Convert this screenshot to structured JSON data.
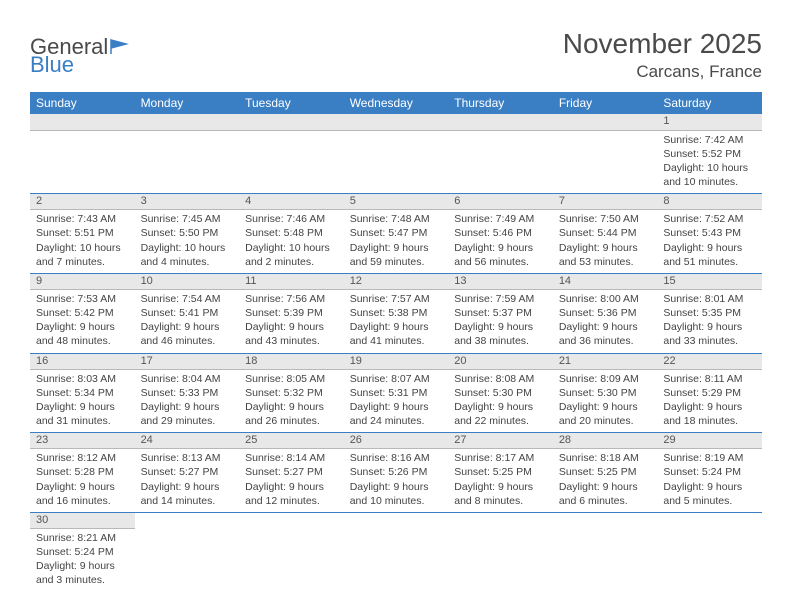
{
  "logo": {
    "text1": "General",
    "text2": "Blue"
  },
  "title": "November 2025",
  "location": "Carcans, France",
  "colors": {
    "header_bg": "#3a7fc4",
    "header_fg": "#ffffff",
    "daynum_bg": "#e8e8e8",
    "row_divider": "#3a7fc4",
    "text": "#444444"
  },
  "weekdays": [
    "Sunday",
    "Monday",
    "Tuesday",
    "Wednesday",
    "Thursday",
    "Friday",
    "Saturday"
  ],
  "weeks": [
    [
      null,
      null,
      null,
      null,
      null,
      null,
      {
        "n": "1",
        "sr": "Sunrise: 7:42 AM",
        "ss": "Sunset: 5:52 PM",
        "d1": "Daylight: 10 hours",
        "d2": "and 10 minutes."
      }
    ],
    [
      {
        "n": "2",
        "sr": "Sunrise: 7:43 AM",
        "ss": "Sunset: 5:51 PM",
        "d1": "Daylight: 10 hours",
        "d2": "and 7 minutes."
      },
      {
        "n": "3",
        "sr": "Sunrise: 7:45 AM",
        "ss": "Sunset: 5:50 PM",
        "d1": "Daylight: 10 hours",
        "d2": "and 4 minutes."
      },
      {
        "n": "4",
        "sr": "Sunrise: 7:46 AM",
        "ss": "Sunset: 5:48 PM",
        "d1": "Daylight: 10 hours",
        "d2": "and 2 minutes."
      },
      {
        "n": "5",
        "sr": "Sunrise: 7:48 AM",
        "ss": "Sunset: 5:47 PM",
        "d1": "Daylight: 9 hours",
        "d2": "and 59 minutes."
      },
      {
        "n": "6",
        "sr": "Sunrise: 7:49 AM",
        "ss": "Sunset: 5:46 PM",
        "d1": "Daylight: 9 hours",
        "d2": "and 56 minutes."
      },
      {
        "n": "7",
        "sr": "Sunrise: 7:50 AM",
        "ss": "Sunset: 5:44 PM",
        "d1": "Daylight: 9 hours",
        "d2": "and 53 minutes."
      },
      {
        "n": "8",
        "sr": "Sunrise: 7:52 AM",
        "ss": "Sunset: 5:43 PM",
        "d1": "Daylight: 9 hours",
        "d2": "and 51 minutes."
      }
    ],
    [
      {
        "n": "9",
        "sr": "Sunrise: 7:53 AM",
        "ss": "Sunset: 5:42 PM",
        "d1": "Daylight: 9 hours",
        "d2": "and 48 minutes."
      },
      {
        "n": "10",
        "sr": "Sunrise: 7:54 AM",
        "ss": "Sunset: 5:41 PM",
        "d1": "Daylight: 9 hours",
        "d2": "and 46 minutes."
      },
      {
        "n": "11",
        "sr": "Sunrise: 7:56 AM",
        "ss": "Sunset: 5:39 PM",
        "d1": "Daylight: 9 hours",
        "d2": "and 43 minutes."
      },
      {
        "n": "12",
        "sr": "Sunrise: 7:57 AM",
        "ss": "Sunset: 5:38 PM",
        "d1": "Daylight: 9 hours",
        "d2": "and 41 minutes."
      },
      {
        "n": "13",
        "sr": "Sunrise: 7:59 AM",
        "ss": "Sunset: 5:37 PM",
        "d1": "Daylight: 9 hours",
        "d2": "and 38 minutes."
      },
      {
        "n": "14",
        "sr": "Sunrise: 8:00 AM",
        "ss": "Sunset: 5:36 PM",
        "d1": "Daylight: 9 hours",
        "d2": "and 36 minutes."
      },
      {
        "n": "15",
        "sr": "Sunrise: 8:01 AM",
        "ss": "Sunset: 5:35 PM",
        "d1": "Daylight: 9 hours",
        "d2": "and 33 minutes."
      }
    ],
    [
      {
        "n": "16",
        "sr": "Sunrise: 8:03 AM",
        "ss": "Sunset: 5:34 PM",
        "d1": "Daylight: 9 hours",
        "d2": "and 31 minutes."
      },
      {
        "n": "17",
        "sr": "Sunrise: 8:04 AM",
        "ss": "Sunset: 5:33 PM",
        "d1": "Daylight: 9 hours",
        "d2": "and 29 minutes."
      },
      {
        "n": "18",
        "sr": "Sunrise: 8:05 AM",
        "ss": "Sunset: 5:32 PM",
        "d1": "Daylight: 9 hours",
        "d2": "and 26 minutes."
      },
      {
        "n": "19",
        "sr": "Sunrise: 8:07 AM",
        "ss": "Sunset: 5:31 PM",
        "d1": "Daylight: 9 hours",
        "d2": "and 24 minutes."
      },
      {
        "n": "20",
        "sr": "Sunrise: 8:08 AM",
        "ss": "Sunset: 5:30 PM",
        "d1": "Daylight: 9 hours",
        "d2": "and 22 minutes."
      },
      {
        "n": "21",
        "sr": "Sunrise: 8:09 AM",
        "ss": "Sunset: 5:30 PM",
        "d1": "Daylight: 9 hours",
        "d2": "and 20 minutes."
      },
      {
        "n": "22",
        "sr": "Sunrise: 8:11 AM",
        "ss": "Sunset: 5:29 PM",
        "d1": "Daylight: 9 hours",
        "d2": "and 18 minutes."
      }
    ],
    [
      {
        "n": "23",
        "sr": "Sunrise: 8:12 AM",
        "ss": "Sunset: 5:28 PM",
        "d1": "Daylight: 9 hours",
        "d2": "and 16 minutes."
      },
      {
        "n": "24",
        "sr": "Sunrise: 8:13 AM",
        "ss": "Sunset: 5:27 PM",
        "d1": "Daylight: 9 hours",
        "d2": "and 14 minutes."
      },
      {
        "n": "25",
        "sr": "Sunrise: 8:14 AM",
        "ss": "Sunset: 5:27 PM",
        "d1": "Daylight: 9 hours",
        "d2": "and 12 minutes."
      },
      {
        "n": "26",
        "sr": "Sunrise: 8:16 AM",
        "ss": "Sunset: 5:26 PM",
        "d1": "Daylight: 9 hours",
        "d2": "and 10 minutes."
      },
      {
        "n": "27",
        "sr": "Sunrise: 8:17 AM",
        "ss": "Sunset: 5:25 PM",
        "d1": "Daylight: 9 hours",
        "d2": "and 8 minutes."
      },
      {
        "n": "28",
        "sr": "Sunrise: 8:18 AM",
        "ss": "Sunset: 5:25 PM",
        "d1": "Daylight: 9 hours",
        "d2": "and 6 minutes."
      },
      {
        "n": "29",
        "sr": "Sunrise: 8:19 AM",
        "ss": "Sunset: 5:24 PM",
        "d1": "Daylight: 9 hours",
        "d2": "and 5 minutes."
      }
    ],
    [
      {
        "n": "30",
        "sr": "Sunrise: 8:21 AM",
        "ss": "Sunset: 5:24 PM",
        "d1": "Daylight: 9 hours",
        "d2": "and 3 minutes."
      },
      null,
      null,
      null,
      null,
      null,
      null
    ]
  ]
}
